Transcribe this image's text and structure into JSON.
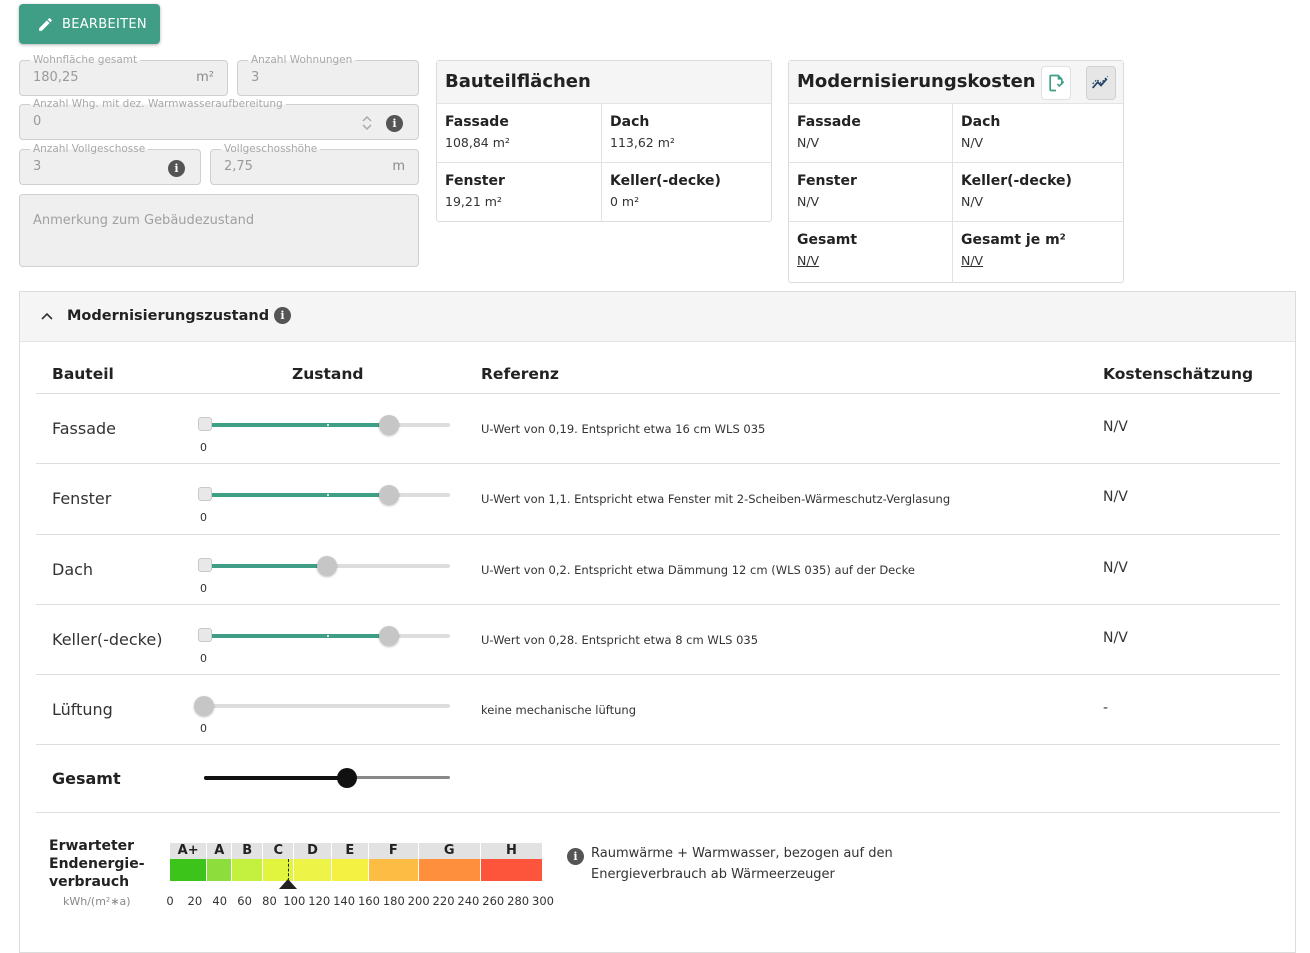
{
  "toolbar": {
    "edit_label": "BEARBEITEN"
  },
  "form": {
    "wohnflaeche": {
      "label": "Wohnfläche gesamt",
      "value": "180,25",
      "unit": "m²"
    },
    "wohnungen": {
      "label": "Anzahl Wohnungen",
      "value": "3"
    },
    "warmwasser": {
      "label": "Anzahl Whg. mit dez. Warmwasseraufbereitung",
      "value": "0"
    },
    "vollgeschosse": {
      "label": "Anzahl Vollgeschosse",
      "value": "3"
    },
    "geschosshoehe": {
      "label": "Vollgeschosshöhe",
      "value": "2,75",
      "unit": "m"
    },
    "anmerkung": {
      "placeholder": "Anmerkung zum Gebäudezustand"
    }
  },
  "bauteilflaechen": {
    "title": "Bauteilflächen",
    "cells": [
      {
        "label": "Fassade",
        "value": "108,84 m²"
      },
      {
        "label": "Dach",
        "value": "113,62 m²"
      },
      {
        "label": "Fenster",
        "value": "19,21 m²"
      },
      {
        "label": "Keller(-decke)",
        "value": "0 m²"
      }
    ]
  },
  "kosten": {
    "title": "Modernisierungskosten",
    "cells": [
      {
        "label": "Fassade",
        "value": "N/V"
      },
      {
        "label": "Dach",
        "value": "N/V"
      },
      {
        "label": "Fenster",
        "value": "N/V"
      },
      {
        "label": "Keller(-decke)",
        "value": "N/V"
      },
      {
        "label": "Gesamt",
        "value": "N/V"
      },
      {
        "label": "Gesamt je m²",
        "value": "N/V"
      }
    ]
  },
  "zustand": {
    "title": "Modernisierungszustand",
    "headers": {
      "bauteil": "Bauteil",
      "zustand": "Zustand",
      "referenz": "Referenz",
      "kosten": "Kostenschätzung"
    },
    "rows": [
      {
        "name": "Fassade",
        "level": 0.75,
        "tick": "0",
        "ref": "U-Wert von 0,19. Entspricht etwa 16 cm WLS 035",
        "cost": "N/V"
      },
      {
        "name": "Fenster",
        "level": 0.75,
        "tick": "0",
        "ref": "U-Wert von 1,1. Entspricht etwa Fenster mit 2-Scheiben-Wärmeschutz-Verglasung",
        "cost": "N/V"
      },
      {
        "name": "Dach",
        "level": 0.5,
        "tick": "0",
        "ref": "U-Wert von 0,2. Entspricht etwa Dämmung 12 cm (WLS 035) auf der Decke",
        "cost": "N/V"
      },
      {
        "name": "Keller(-decke)",
        "level": 0.75,
        "tick": "0",
        "ref": "U-Wert von 0,28. Entspricht etwa 8 cm WLS 035",
        "cost": "N/V"
      },
      {
        "name": "Lüftung",
        "level": 0,
        "tick": "0",
        "ref": "keine mechanische lüftung",
        "cost": "-"
      }
    ],
    "gesamt": {
      "label": "Gesamt",
      "level": 0.58
    }
  },
  "energy": {
    "label_lines": [
      "Erwarteter",
      "Endenergie-",
      "verbrauch"
    ],
    "unit": "kWh/(m²∗a)",
    "classes": [
      {
        "name": "A+",
        "from": 0,
        "to": 30,
        "color": "#3cc41a"
      },
      {
        "name": "A",
        "from": 30,
        "to": 50,
        "color": "#8ddd3c"
      },
      {
        "name": "B",
        "from": 50,
        "to": 75,
        "color": "#c4f13f"
      },
      {
        "name": "C",
        "from": 75,
        "to": 100,
        "color": "#e2f53e"
      },
      {
        "name": "D",
        "from": 100,
        "to": 130,
        "color": "#edf447"
      },
      {
        "name": "E",
        "from": 130,
        "to": 160,
        "color": "#f4f143"
      },
      {
        "name": "F",
        "from": 160,
        "to": 200,
        "color": "#fdbd45"
      },
      {
        "name": "G",
        "from": 200,
        "to": 250,
        "color": "#fd8f3d"
      },
      {
        "name": "H",
        "from": 250,
        "to": 300,
        "color": "#fd553b"
      }
    ],
    "ticks": [
      "0",
      "20",
      "40",
      "60",
      "80",
      "100",
      "120",
      "140",
      "160",
      "180",
      "200",
      "220",
      "240",
      "260",
      "280",
      "300"
    ],
    "marker_value": 95,
    "info_text": "Raumwärme + Warmwasser, bezogen auf den Energieverbrauch ab Wärmeerzeuger"
  },
  "colors": {
    "accent": "#3f9e85"
  }
}
